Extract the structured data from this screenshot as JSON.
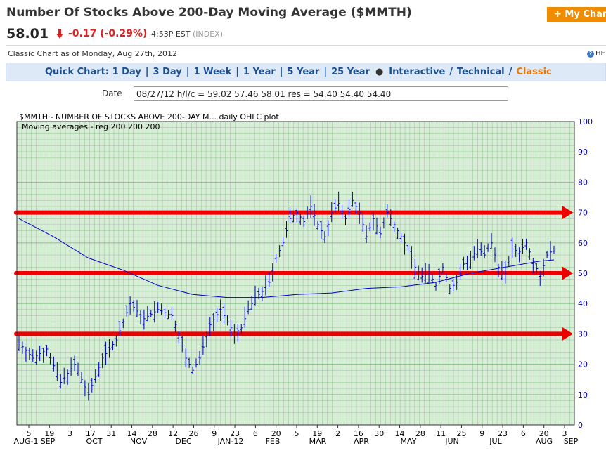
{
  "header": {
    "title": "Number Of Stocks Above 200-Day Moving Average ($MMTH)",
    "price": "58.01",
    "change": "-0.17 (-0.29%)",
    "time": "4:53P EST",
    "exchange": "(INDEX)",
    "my_chart_label": "+ My Chart",
    "change_color": "#dd2222",
    "accent_color": "#f08c00"
  },
  "subheader": {
    "classic_text": "Classic Chart as of Monday, Aug 27th, 2012",
    "help_label": "HE"
  },
  "quickchart": {
    "label": "Quick Chart:",
    "links": [
      "1 Day",
      "3 Day",
      "1 Week",
      "1 Year",
      "5 Year",
      "25 Year"
    ],
    "interactive": "Interactive",
    "technical": "Technical",
    "classic": "Classic"
  },
  "date_field": {
    "label": "Date",
    "value": "08/27/12 h/l/c = 59.02 57.46 58.01 res = 54.40 54.40 54.40"
  },
  "chart_data": {
    "type": "ohlc",
    "title": "$MMTH - NUMBER OF STOCKS ABOVE 200-DAY M... daily OHLC plot",
    "subtitle": "Moving averages - reg  200 200 200",
    "ylim": [
      0,
      100
    ],
    "yticks": [
      0,
      10,
      20,
      30,
      40,
      50,
      60,
      70,
      80,
      90,
      100
    ],
    "grid": true,
    "price_color": "#0000cc",
    "ma_color": "#0000cc",
    "grid_color": "#7fbf7f",
    "bg_color": "#d8ecd8",
    "arrow_color": "#ee0000",
    "x_day_labels": [
      "5",
      "19",
      "3",
      "17",
      "31",
      "14",
      "28",
      "12",
      "26",
      "9",
      "23",
      "6",
      "20",
      "5",
      "19",
      "2",
      "16",
      "30",
      "14",
      "28",
      "11",
      "25",
      "9",
      "23",
      "6",
      "20",
      "3"
    ],
    "x_month_labels": [
      "AUG-1",
      "SEP",
      "OCT",
      "NOV",
      "DEC",
      "JAN-12",
      "FEB",
      "MAR",
      "APR",
      "MAY",
      "JUN",
      "JUL",
      "AUG",
      "SEP"
    ],
    "horizontal_arrows": [
      70,
      50,
      30
    ],
    "close_path": [
      [
        0,
        27
      ],
      [
        4,
        22
      ],
      [
        8,
        25
      ],
      [
        12,
        14
      ],
      [
        16,
        20
      ],
      [
        20,
        10
      ],
      [
        24,
        22
      ],
      [
        28,
        28
      ],
      [
        32,
        40
      ],
      [
        36,
        35
      ],
      [
        40,
        38
      ],
      [
        44,
        36
      ],
      [
        46,
        30
      ],
      [
        48,
        22
      ],
      [
        50,
        18
      ],
      [
        52,
        22
      ],
      [
        55,
        33
      ],
      [
        58,
        38
      ],
      [
        62,
        30
      ],
      [
        64,
        32
      ],
      [
        66,
        38
      ],
      [
        68,
        42
      ],
      [
        70,
        44
      ],
      [
        72,
        47
      ],
      [
        74,
        55
      ],
      [
        76,
        60
      ],
      [
        78,
        68
      ],
      [
        80,
        70
      ],
      [
        82,
        67
      ],
      [
        84,
        72
      ],
      [
        86,
        66
      ],
      [
        88,
        62
      ],
      [
        90,
        70
      ],
      [
        92,
        73
      ],
      [
        94,
        68
      ],
      [
        96,
        74
      ],
      [
        98,
        70
      ],
      [
        100,
        62
      ],
      [
        102,
        68
      ],
      [
        104,
        63
      ],
      [
        106,
        70
      ],
      [
        108,
        66
      ],
      [
        110,
        62
      ],
      [
        112,
        58
      ],
      [
        114,
        52
      ],
      [
        116,
        49
      ],
      [
        118,
        50
      ],
      [
        120,
        46
      ],
      [
        122,
        52
      ],
      [
        124,
        45
      ],
      [
        126,
        47
      ],
      [
        128,
        53
      ],
      [
        130,
        55
      ],
      [
        132,
        58
      ],
      [
        134,
        56
      ],
      [
        136,
        60
      ],
      [
        138,
        52
      ],
      [
        140,
        50
      ],
      [
        142,
        58
      ],
      [
        144,
        57
      ],
      [
        146,
        60
      ],
      [
        148,
        54
      ],
      [
        150,
        49
      ],
      [
        152,
        56
      ],
      [
        154,
        58
      ]
    ],
    "ma_path": [
      [
        0,
        68
      ],
      [
        10,
        62
      ],
      [
        20,
        55
      ],
      [
        30,
        51
      ],
      [
        40,
        46
      ],
      [
        50,
        43
      ],
      [
        60,
        42
      ],
      [
        70,
        42
      ],
      [
        80,
        43
      ],
      [
        90,
        43.5
      ],
      [
        100,
        45
      ],
      [
        110,
        45.5
      ],
      [
        120,
        47
      ],
      [
        130,
        50
      ],
      [
        140,
        52
      ],
      [
        150,
        54
      ],
      [
        154,
        54.4
      ]
    ]
  }
}
